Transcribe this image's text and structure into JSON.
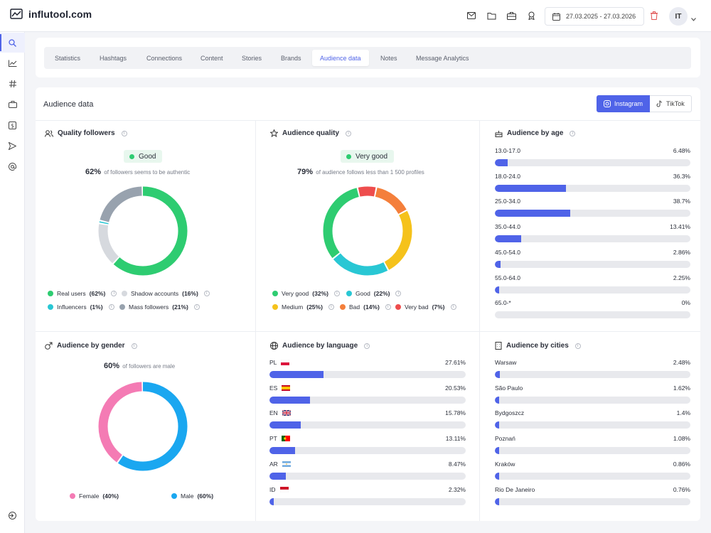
{
  "app": {
    "name": "influtool.com"
  },
  "header": {
    "date_range": "27.03.2025 - 27.03.2026",
    "avatar_initials": "IT"
  },
  "tabs": [
    "Statistics",
    "Hashtags",
    "Connections",
    "Content",
    "Stories",
    "Brands",
    "Audience data",
    "Notes",
    "Message Analytics"
  ],
  "active_tab": "Audience data",
  "main": {
    "title": "Audience data",
    "platforms": [
      "Instagram",
      "TikTok"
    ]
  },
  "quality_followers": {
    "title": "Quality followers",
    "badge": "Good",
    "percent": "62%",
    "caption": "of followers seems to be authentic",
    "legend": [
      {
        "label": "Real users",
        "value": "(62%)",
        "color": "#2ecc71"
      },
      {
        "label": "Shadow accounts",
        "value": "(16%)",
        "color": "#d6d9de"
      },
      {
        "label": "Influencers",
        "value": "(1%)",
        "color": "#29c7d4"
      },
      {
        "label": "Mass followers",
        "value": "(21%)",
        "color": "#98a2ae"
      }
    ]
  },
  "audience_quality": {
    "title": "Audience quality",
    "badge": "Very good",
    "percent": "79%",
    "caption": "of audience follows less than 1 500 profiles",
    "legend": [
      {
        "label": "Very good",
        "value": "(32%)",
        "color": "#2ecc71"
      },
      {
        "label": "Good",
        "value": "(22%)",
        "color": "#29c7d4"
      },
      {
        "label": "Medium",
        "value": "(25%)",
        "color": "#f5c21b"
      },
      {
        "label": "Bad",
        "value": "(14%)",
        "color": "#f47f3b"
      },
      {
        "label": "Very bad",
        "value": "(7%)",
        "color": "#ee4d4d"
      }
    ]
  },
  "audience_age": {
    "title": "Audience by age",
    "rows": [
      {
        "label": "13.0-17.0",
        "value": "6.48%"
      },
      {
        "label": "18.0-24.0",
        "value": "36.3%"
      },
      {
        "label": "25.0-34.0",
        "value": "38.7%"
      },
      {
        "label": "35.0-44.0",
        "value": "13.41%"
      },
      {
        "label": "45.0-54.0",
        "value": "2.86%"
      },
      {
        "label": "55.0-64.0",
        "value": "2.25%"
      },
      {
        "label": "65.0-*",
        "value": "0%"
      }
    ]
  },
  "audience_gender": {
    "title": "Audience by gender",
    "percent": "60%",
    "caption": "of followers are male",
    "legend": [
      {
        "label": "Female",
        "value": "(40%)",
        "color": "#f47bb4"
      },
      {
        "label": "Male",
        "value": "(60%)",
        "color": "#1aa7f0"
      }
    ]
  },
  "audience_language": {
    "title": "Audience by language",
    "rows": [
      {
        "label": "PL",
        "flag": "pl",
        "value": "27.61%"
      },
      {
        "label": "ES",
        "flag": "es",
        "value": "20.53%"
      },
      {
        "label": "EN",
        "flag": "gb",
        "value": "15.78%"
      },
      {
        "label": "PT",
        "flag": "pt",
        "value": "13.11%"
      },
      {
        "label": "AR",
        "flag": "ar",
        "value": "8.47%"
      },
      {
        "label": "ID",
        "flag": "id",
        "value": "2.32%"
      }
    ]
  },
  "audience_cities": {
    "title": "Audience by cities",
    "rows": [
      {
        "label": "Warsaw",
        "value": "2.48%"
      },
      {
        "label": "São Paulo",
        "value": "1.62%"
      },
      {
        "label": "Bydgoszcz",
        "value": "1.4%"
      },
      {
        "label": "Poznań",
        "value": "1.08%"
      },
      {
        "label": "Kraków",
        "value": "0.86%"
      },
      {
        "label": "Rio De Janeiro",
        "value": "0.76%"
      }
    ]
  },
  "icons": {
    "accent": "#4f63e8",
    "sidebar": [
      "search-icon",
      "chart-line-icon",
      "hashtag-icon",
      "briefcase-icon",
      "dollar-icon",
      "send-icon",
      "at-icon",
      "logout-icon"
    ]
  }
}
